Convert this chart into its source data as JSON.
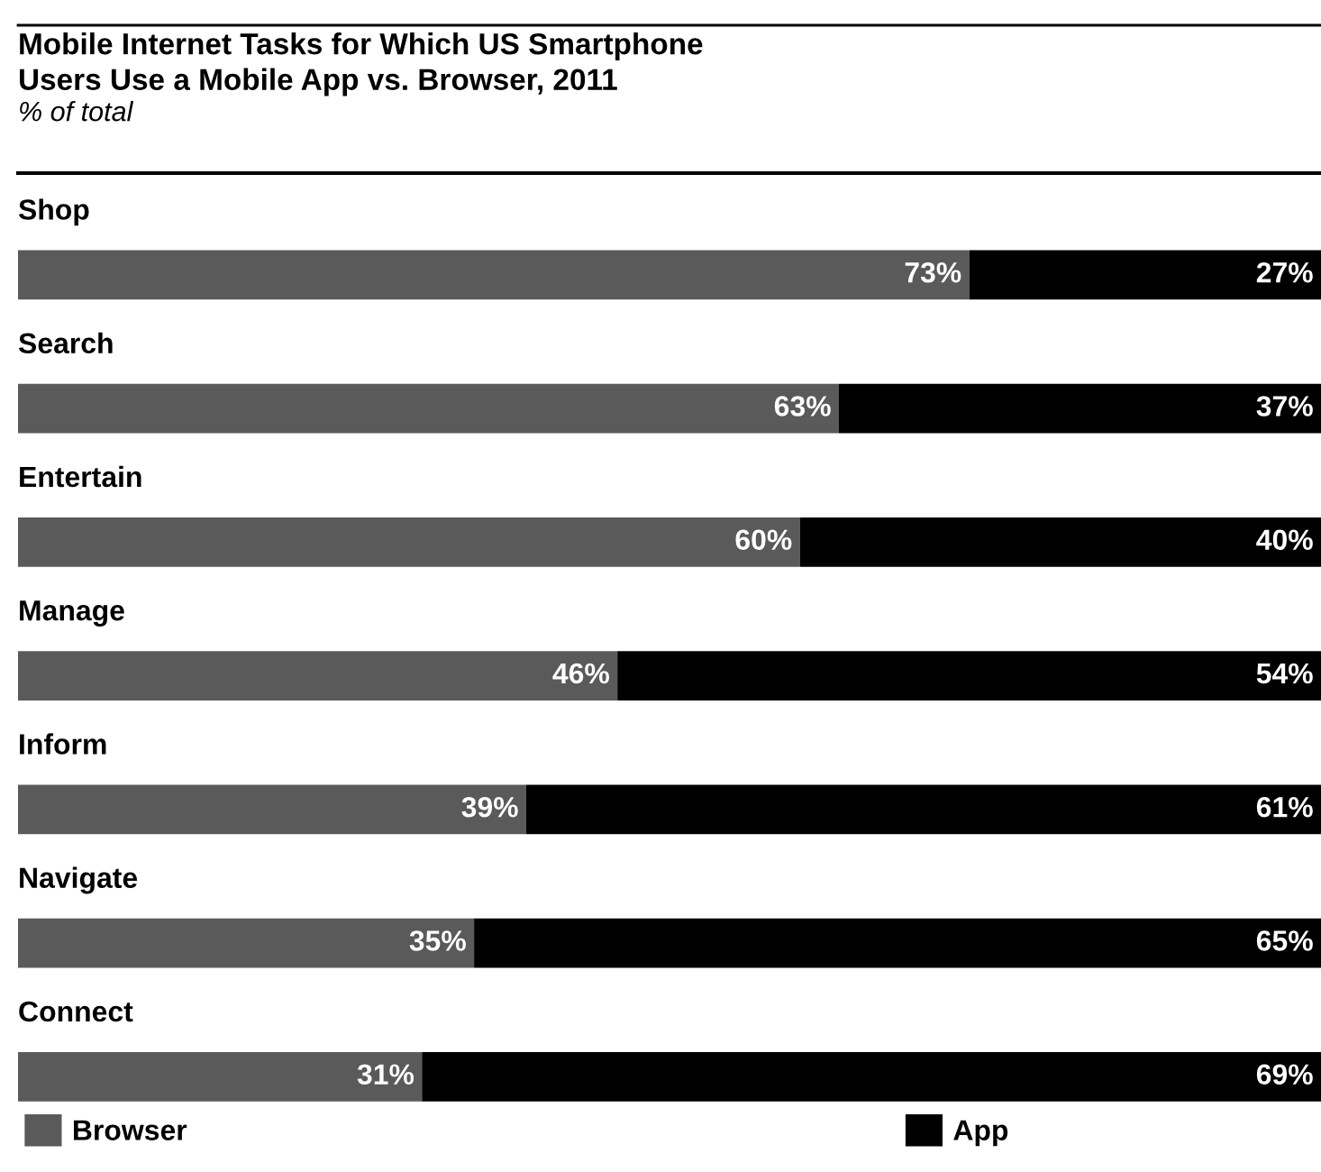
{
  "chart_data": {
    "type": "bar",
    "orientation": "horizontal",
    "stacked": true,
    "title": "Mobile Internet Tasks for Which US Smartphone\nUsers Use a Mobile App vs. Browser, 2011",
    "subtitle": "% of total",
    "categories": [
      "Shop",
      "Search",
      "Entertain",
      "Manage",
      "Inform",
      "Navigate",
      "Connect"
    ],
    "series": [
      {
        "name": "Browser",
        "color": "#5a5a5a",
        "values": [
          73,
          63,
          60,
          46,
          39,
          35,
          31
        ],
        "value_labels": [
          "73%",
          "63%",
          "60%",
          "46%",
          "39%",
          "35%",
          "31%"
        ]
      },
      {
        "name": "App",
        "color": "#000000",
        "values": [
          27,
          37,
          40,
          54,
          61,
          65,
          69
        ],
        "value_labels": [
          "27%",
          "37%",
          "40%",
          "54%",
          "61%",
          "65%",
          "69%"
        ]
      }
    ],
    "legend": "bottom"
  }
}
